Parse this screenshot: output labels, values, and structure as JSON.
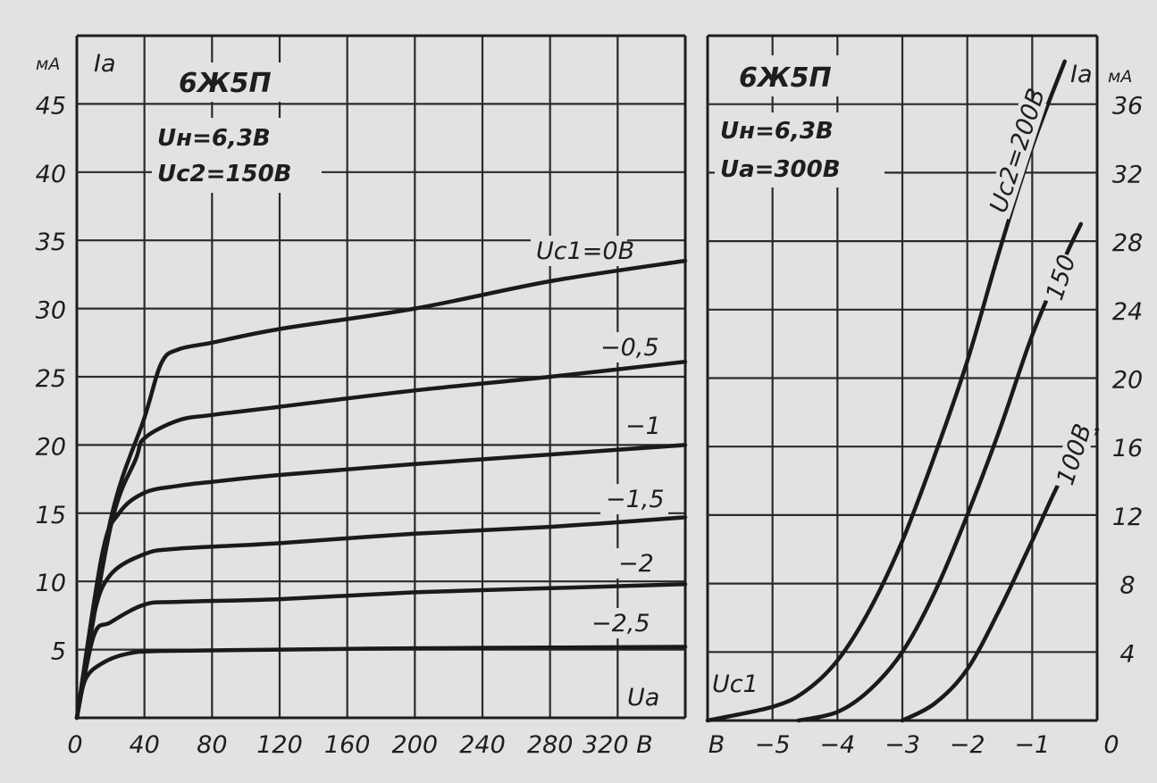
{
  "chart_data": [
    {
      "type": "line",
      "title": "6Ж5П",
      "params": [
        "Uн=6,3В",
        "Uс2=150В"
      ],
      "ylabel": "Iа",
      "yunit": "мА",
      "xlabel": "Uа",
      "xunit": "В",
      "xlim": [
        0,
        360
      ],
      "ylim": [
        0,
        50
      ],
      "xticks": [
        0,
        40,
        80,
        120,
        160,
        200,
        240,
        280,
        320
      ],
      "xtick_labels": [
        "0",
        "40",
        "80",
        "120",
        "160",
        "200",
        "240",
        "280",
        "320 В"
      ],
      "yticks": [
        5,
        10,
        15,
        20,
        25,
        30,
        35,
        40,
        45
      ],
      "ytick_labels": [
        "5",
        "10",
        "15",
        "20",
        "25",
        "30",
        "35",
        "40",
        "45"
      ],
      "grid": true,
      "series": [
        {
          "name": "Uс1=0В",
          "points": [
            [
              0,
              0
            ],
            [
              20,
              14.5
            ],
            [
              40,
              22
            ],
            [
              50,
              26
            ],
            [
              60,
              27
            ],
            [
              80,
              27.5
            ],
            [
              120,
              28.5
            ],
            [
              200,
              30
            ],
            [
              280,
              32
            ],
            [
              360,
              33.5
            ]
          ]
        },
        {
          "name": "−0,5",
          "points": [
            [
              0,
              0
            ],
            [
              20,
              14
            ],
            [
              35,
              19
            ],
            [
              40,
              20.5
            ],
            [
              60,
              21.8
            ],
            [
              80,
              22.2
            ],
            [
              120,
              22.8
            ],
            [
              200,
              24
            ],
            [
              280,
              25
            ],
            [
              360,
              26.1
            ]
          ]
        },
        {
          "name": "−1",
          "points": [
            [
              0,
              0
            ],
            [
              15,
              12
            ],
            [
              25,
              15
            ],
            [
              40,
              16.5
            ],
            [
              60,
              17
            ],
            [
              80,
              17.3
            ],
            [
              120,
              17.8
            ],
            [
              200,
              18.6
            ],
            [
              280,
              19.3
            ],
            [
              360,
              20
            ]
          ]
        },
        {
          "name": "−1,5",
          "points": [
            [
              0,
              0
            ],
            [
              10,
              7.5
            ],
            [
              20,
              10.5
            ],
            [
              40,
              12
            ],
            [
              60,
              12.4
            ],
            [
              120,
              12.8
            ],
            [
              200,
              13.5
            ],
            [
              280,
              14
            ],
            [
              360,
              14.7
            ]
          ]
        },
        {
          "name": "−2",
          "points": [
            [
              0,
              0
            ],
            [
              10,
              6
            ],
            [
              20,
              7
            ],
            [
              40,
              8.3
            ],
            [
              60,
              8.5
            ],
            [
              120,
              8.7
            ],
            [
              200,
              9.2
            ],
            [
              280,
              9.5
            ],
            [
              360,
              9.8
            ]
          ]
        },
        {
          "name": "−2,5",
          "points": [
            [
              0,
              0
            ],
            [
              5,
              2.8
            ],
            [
              15,
              4
            ],
            [
              30,
              4.7
            ],
            [
              50,
              4.9
            ],
            [
              120,
              5
            ],
            [
              200,
              5.1
            ],
            [
              280,
              5.15
            ],
            [
              360,
              5.2
            ]
          ]
        }
      ]
    },
    {
      "type": "line",
      "title": "6Ж5П",
      "params": [
        "Uн=6,3В",
        "Uа=300В"
      ],
      "ylabel": "Iа",
      "yunit": "мА",
      "xlabel": "Uс1",
      "xunit": "В",
      "xlim": [
        -6,
        0
      ],
      "ylim": [
        0,
        40
      ],
      "xticks": [
        -6,
        -5,
        -4,
        -3,
        -2,
        -1,
        0
      ],
      "xtick_labels": [
        "В",
        "−5",
        "−4",
        "−3",
        "−2",
        "−1",
        "0"
      ],
      "yticks": [
        4,
        8,
        12,
        16,
        20,
        24,
        28,
        32,
        36
      ],
      "ytick_labels": [
        "4",
        "8",
        "12",
        "16",
        "20",
        "24",
        "28",
        "32",
        "36"
      ],
      "grid": true,
      "series": [
        {
          "name": "Uс2=200В",
          "points": [
            [
              -6,
              0
            ],
            [
              -5,
              0.8
            ],
            [
              -4.5,
              1.7
            ],
            [
              -4,
              3.5
            ],
            [
              -3.5,
              6.5
            ],
            [
              -3,
              10.5
            ],
            [
              -2.5,
              15.5
            ],
            [
              -2,
              21
            ],
            [
              -1.5,
              27.5
            ],
            [
              -1,
              33.5
            ],
            [
              -0.5,
              38.5
            ]
          ]
        },
        {
          "name": "150",
          "points": [
            [
              -4.6,
              0
            ],
            [
              -4,
              0.5
            ],
            [
              -3.5,
              1.8
            ],
            [
              -3,
              4
            ],
            [
              -2.5,
              7.5
            ],
            [
              -2,
              12
            ],
            [
              -1.5,
              17
            ],
            [
              -1,
              22.5
            ],
            [
              -0.5,
              27
            ],
            [
              -0.25,
              29
            ]
          ]
        },
        {
          "name": "100В",
          "points": [
            [
              -3,
              0
            ],
            [
              -2.5,
              1
            ],
            [
              -2,
              3
            ],
            [
              -1.5,
              6.5
            ],
            [
              -1,
              10.5
            ],
            [
              -0.5,
              14.5
            ],
            [
              0,
              17
            ]
          ]
        }
      ]
    }
  ]
}
